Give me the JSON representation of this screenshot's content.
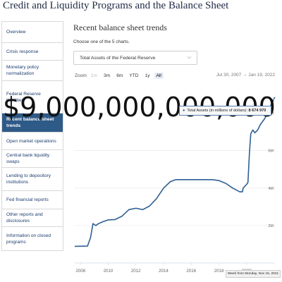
{
  "page": {
    "title": "Credit and Liquidity Programs and the Balance Sheet"
  },
  "sidebar": {
    "items": [
      {
        "label": "Overview",
        "active": false
      },
      {
        "label": "Crisis response",
        "active": false
      },
      {
        "label": "Monetary policy normalization",
        "active": false
      },
      {
        "label": "Federal Reserve liabilities",
        "active": false
      },
      {
        "label": "Recent balance sheet trends",
        "active": true
      },
      {
        "label": "Open market operations",
        "active": false
      },
      {
        "label": "Central bank liquidity swaps",
        "active": false
      },
      {
        "label": "Lending to depository institutions",
        "active": false
      },
      {
        "label": "Fed financial reports",
        "active": false
      },
      {
        "label": "Other reports and disclosures",
        "active": false
      },
      {
        "label": "Information on closed programs",
        "active": false
      }
    ]
  },
  "main": {
    "title": "Recent balance sheet trends",
    "choose_label": "Choose one of the 5 charts.",
    "selected_chart": "Total Assets of the Federal Reserve",
    "zoom": {
      "label": "Zoom",
      "buttons": [
        "1m",
        "3m",
        "6m",
        "YTD",
        "1y",
        "All"
      ],
      "disabled": [
        "1m"
      ],
      "selected": "All"
    },
    "date_range": "Jul 30, 2007  →  Jan 19, 2022",
    "overlay_value": "$9,000,000,000,000",
    "tooltip": {
      "text": "Total Assets (in millions of dollars):",
      "value": "8 674 970"
    },
    "hover_date": "Week from Monday, Nov 15, 2021"
  },
  "chart_data": {
    "type": "line",
    "series": [
      {
        "color": "#2f5f93",
        "points": [
          [
            2007.58,
            0.89
          ],
          [
            2008.5,
            0.9
          ],
          [
            2008.72,
            1.35
          ],
          [
            2008.9,
            2.1
          ],
          [
            2009.1,
            2.0
          ],
          [
            2009.3,
            2.1
          ],
          [
            2009.6,
            2.2
          ],
          [
            2010.0,
            2.3
          ],
          [
            2010.5,
            2.32
          ],
          [
            2011.0,
            2.5
          ],
          [
            2011.5,
            2.85
          ],
          [
            2012.0,
            2.92
          ],
          [
            2012.5,
            2.85
          ],
          [
            2013.0,
            3.05
          ],
          [
            2013.5,
            3.45
          ],
          [
            2014.0,
            4.0
          ],
          [
            2014.5,
            4.35
          ],
          [
            2014.9,
            4.45
          ],
          [
            2015.5,
            4.45
          ],
          [
            2016.5,
            4.45
          ],
          [
            2017.5,
            4.45
          ],
          [
            2018.0,
            4.4
          ],
          [
            2018.5,
            4.25
          ],
          [
            2019.0,
            4.0
          ],
          [
            2019.5,
            3.8
          ],
          [
            2019.7,
            3.8
          ],
          [
            2019.75,
            4.0
          ],
          [
            2020.0,
            4.2
          ],
          [
            2020.1,
            4.3
          ],
          [
            2020.2,
            5.8
          ],
          [
            2020.3,
            6.9
          ],
          [
            2020.45,
            7.1
          ],
          [
            2020.6,
            6.95
          ],
          [
            2020.8,
            7.1
          ],
          [
            2021.0,
            7.4
          ],
          [
            2021.3,
            7.7
          ],
          [
            2021.6,
            8.1
          ],
          [
            2021.87,
            8.67
          ],
          [
            2022.05,
            8.85
          ]
        ]
      }
    ],
    "x_ticks": [
      "2008",
      "2010",
      "2012",
      "2014",
      "2016",
      "2018",
      "2020"
    ],
    "x_tick_values": [
      2008,
      2010,
      2012,
      2014,
      2016,
      2018,
      2020
    ],
    "y_ticks": [
      "2M",
      "4M",
      "6M",
      "8M"
    ],
    "y_tick_values": [
      2,
      4,
      6,
      8
    ],
    "xlim": [
      2007.58,
      2022.05
    ],
    "ylim": [
      0,
      9.3
    ],
    "grid": true
  }
}
